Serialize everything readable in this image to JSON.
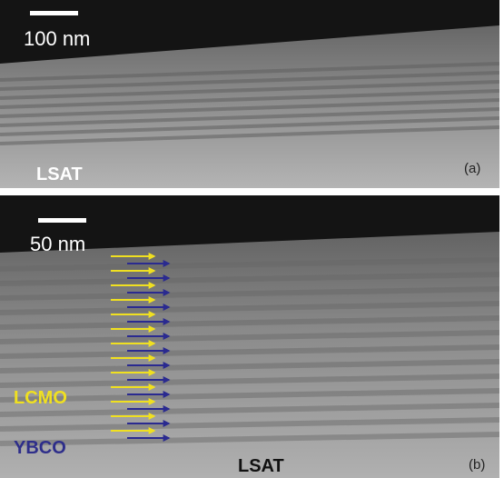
{
  "panels": [
    {
      "scale_bar": "100 nm",
      "substrate": "LSAT",
      "label": "(a)"
    },
    {
      "scale_bar": "50 nm",
      "layers": [
        "LCMO",
        "YBCO"
      ],
      "substrate": "LSAT",
      "label": "(b)"
    }
  ]
}
